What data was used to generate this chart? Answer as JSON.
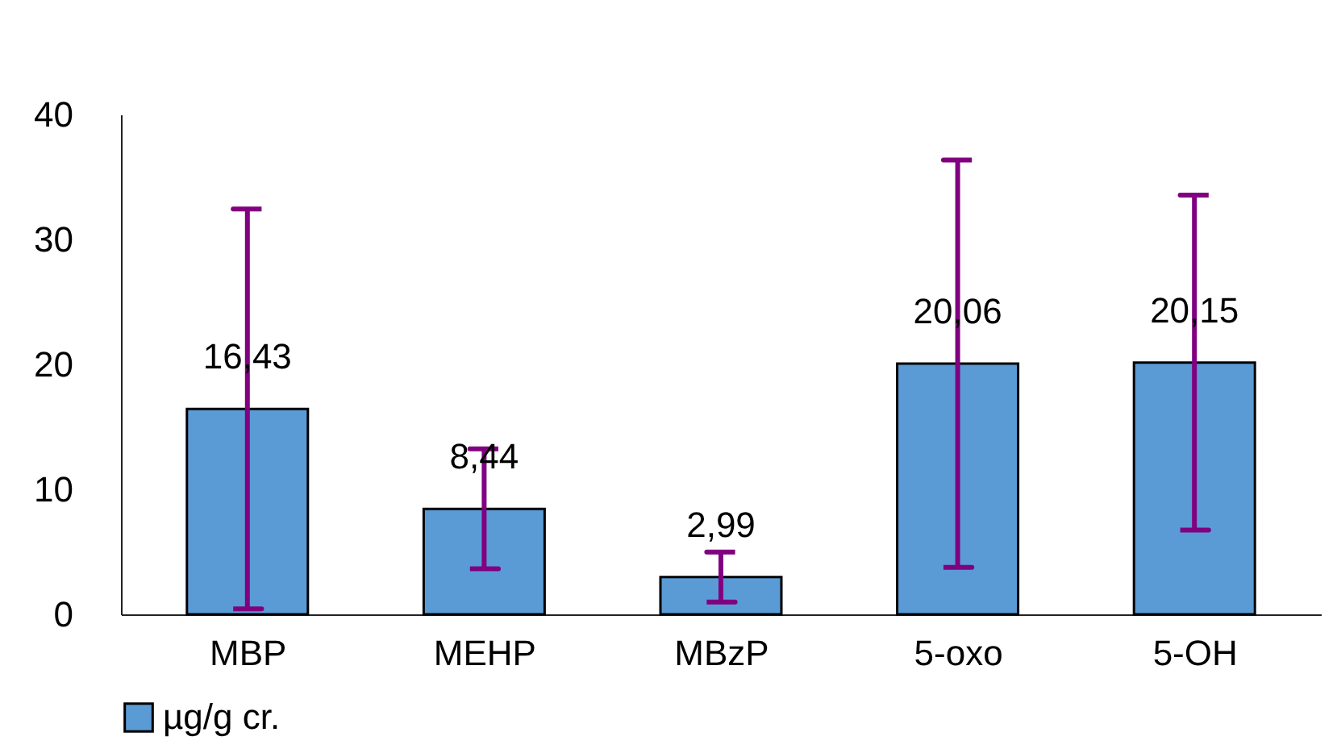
{
  "chart_data": {
    "type": "bar",
    "categories": [
      "MBP",
      "MEHP",
      "MBzP",
      "5-oxo",
      "5-OH"
    ],
    "series": [
      {
        "name": "µg/g cr.",
        "color": "#5b9bd5",
        "values": [
          16.43,
          8.44,
          2.99,
          20.06,
          20.15
        ],
        "errors": [
          16,
          4.8,
          2,
          16.3,
          13.4
        ],
        "value_labels": [
          "16,43",
          "8,44",
          "2,99",
          "20,06",
          "20,15"
        ]
      }
    ],
    "ylim": [
      0,
      40
    ],
    "yticks": [
      0,
      10,
      20,
      30,
      40
    ],
    "grid": false,
    "legend": "bottom"
  }
}
